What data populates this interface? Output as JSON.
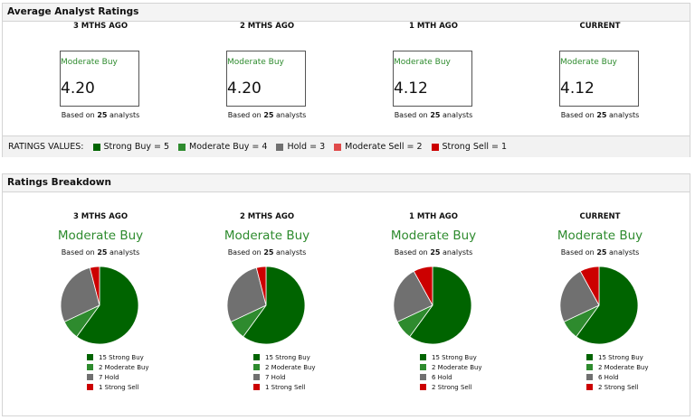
{
  "colors": {
    "strong_buy": "#006400",
    "moderate_buy": "#2e8b2e",
    "hold": "#707070",
    "moderate_sell": "#e04a4a",
    "strong_sell": "#cc0000"
  },
  "average": {
    "title": "Average Analyst Ratings",
    "based_prefix": "Based on",
    "based_suffix": "analysts",
    "columns": [
      {
        "period": "3 MTHS AGO",
        "rating": "Moderate Buy",
        "score": "4.20",
        "analysts": "25"
      },
      {
        "period": "2 MTHS AGO",
        "rating": "Moderate Buy",
        "score": "4.20",
        "analysts": "25"
      },
      {
        "period": "1 MTH AGO",
        "rating": "Moderate Buy",
        "score": "4.12",
        "analysts": "25"
      },
      {
        "period": "CURRENT",
        "rating": "Moderate Buy",
        "score": "4.12",
        "analysts": "25"
      }
    ],
    "legend_label": "RATINGS VALUES:",
    "legend": [
      {
        "label": "Strong Buy = 5",
        "color": "#006400"
      },
      {
        "label": "Moderate Buy = 4",
        "color": "#2e8b2e"
      },
      {
        "label": "Hold = 3",
        "color": "#707070"
      },
      {
        "label": "Moderate Sell = 2",
        "color": "#e04a4a"
      },
      {
        "label": "Strong Sell = 1",
        "color": "#cc0000"
      }
    ]
  },
  "breakdown": {
    "title": "Ratings Breakdown",
    "based_prefix": "Based on",
    "based_suffix": "analysts",
    "columns": [
      {
        "period": "3 MTHS AGO",
        "rating": "Moderate Buy",
        "analysts": "25",
        "legend": [
          "15 Strong Buy",
          "2 Moderate Buy",
          "7 Hold",
          "1 Strong Sell"
        ]
      },
      {
        "period": "2 MTHS AGO",
        "rating": "Moderate Buy",
        "analysts": "25",
        "legend": [
          "15 Strong Buy",
          "2 Moderate Buy",
          "7 Hold",
          "1 Strong Sell"
        ]
      },
      {
        "period": "1 MTH AGO",
        "rating": "Moderate Buy",
        "analysts": "25",
        "legend": [
          "15 Strong Buy",
          "2 Moderate Buy",
          "6 Hold",
          "2 Strong Sell"
        ]
      },
      {
        "period": "CURRENT",
        "rating": "Moderate Buy",
        "analysts": "25",
        "legend": [
          "15 Strong Buy",
          "2 Moderate Buy",
          "6 Hold",
          "2 Strong Sell"
        ]
      }
    ]
  },
  "chart_data": [
    {
      "type": "pie",
      "categories": [
        "Strong Buy",
        "Moderate Buy",
        "Hold",
        "Strong Sell"
      ],
      "values": [
        15,
        2,
        7,
        1
      ],
      "colors": [
        "#006400",
        "#2e8b2e",
        "#707070",
        "#cc0000"
      ]
    },
    {
      "type": "pie",
      "categories": [
        "Strong Buy",
        "Moderate Buy",
        "Hold",
        "Strong Sell"
      ],
      "values": [
        15,
        2,
        7,
        1
      ],
      "colors": [
        "#006400",
        "#2e8b2e",
        "#707070",
        "#cc0000"
      ]
    },
    {
      "type": "pie",
      "categories": [
        "Strong Buy",
        "Moderate Buy",
        "Hold",
        "Strong Sell"
      ],
      "values": [
        15,
        2,
        6,
        2
      ],
      "colors": [
        "#006400",
        "#2e8b2e",
        "#707070",
        "#cc0000"
      ]
    },
    {
      "type": "pie",
      "categories": [
        "Strong Buy",
        "Moderate Buy",
        "Hold",
        "Strong Sell"
      ],
      "values": [
        15,
        2,
        6,
        2
      ],
      "colors": [
        "#006400",
        "#2e8b2e",
        "#707070",
        "#cc0000"
      ]
    }
  ]
}
